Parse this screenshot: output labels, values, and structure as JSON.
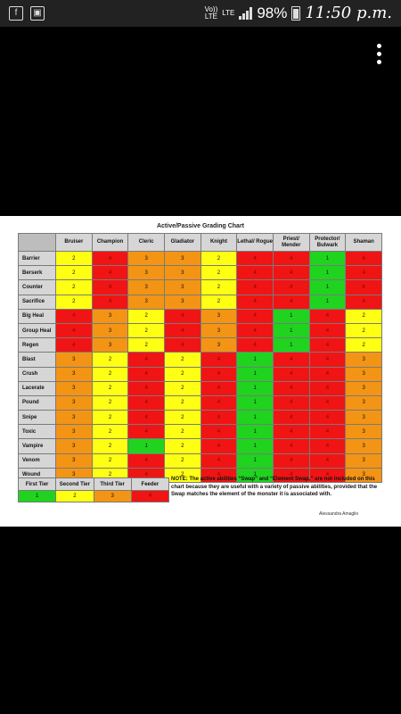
{
  "status_bar": {
    "volte": "Vo))\nLTE",
    "lte": "LTE",
    "battery": "98%",
    "time": "11:50 p.m.",
    "icons": [
      "facebook-icon",
      "gallery-icon",
      "signal-icon",
      "battery-icon",
      "overflow-menu-icon"
    ]
  },
  "chart": {
    "title": "Active/Passive Grading Chart",
    "columns": [
      "Bruiser",
      "Champion",
      "Cleric",
      "Gladiator",
      "Knight",
      "Lethal/ Rogue",
      "Priest/ Mender",
      "Protector/ Bulwark",
      "Shaman"
    ],
    "rows": [
      {
        "name": "Barrier",
        "values": [
          2,
          4,
          3,
          3,
          2,
          4,
          4,
          1,
          4
        ]
      },
      {
        "name": "Berserk",
        "values": [
          2,
          4,
          3,
          3,
          2,
          4,
          4,
          1,
          4
        ]
      },
      {
        "name": "Counter",
        "values": [
          2,
          4,
          3,
          3,
          2,
          4,
          4,
          1,
          4
        ]
      },
      {
        "name": "Sacrifice",
        "values": [
          2,
          4,
          3,
          3,
          2,
          4,
          4,
          1,
          4
        ]
      },
      {
        "name": "Big Heal",
        "values": [
          4,
          3,
          2,
          4,
          3,
          4,
          1,
          4,
          2
        ]
      },
      {
        "name": "Group Heal",
        "values": [
          4,
          3,
          2,
          4,
          3,
          4,
          1,
          4,
          2
        ]
      },
      {
        "name": "Regen",
        "values": [
          4,
          3,
          2,
          4,
          3,
          4,
          1,
          4,
          2
        ]
      },
      {
        "name": "Blast",
        "values": [
          3,
          2,
          4,
          2,
          4,
          1,
          4,
          4,
          3
        ]
      },
      {
        "name": "Crush",
        "values": [
          3,
          2,
          4,
          2,
          4,
          1,
          4,
          4,
          3
        ]
      },
      {
        "name": "Lacerate",
        "values": [
          3,
          2,
          4,
          2,
          4,
          1,
          4,
          4,
          3
        ]
      },
      {
        "name": "Pound",
        "values": [
          3,
          2,
          4,
          2,
          4,
          1,
          4,
          4,
          3
        ]
      },
      {
        "name": "Snipe",
        "values": [
          3,
          2,
          4,
          2,
          4,
          1,
          4,
          4,
          3
        ]
      },
      {
        "name": "Toxic",
        "values": [
          3,
          2,
          4,
          2,
          4,
          1,
          4,
          4,
          3
        ]
      },
      {
        "name": "Vampire",
        "values": [
          3,
          2,
          1,
          2,
          4,
          1,
          4,
          4,
          3
        ]
      },
      {
        "name": "Venom",
        "values": [
          3,
          2,
          4,
          2,
          4,
          1,
          4,
          4,
          3
        ]
      },
      {
        "name": "Wound",
        "values": [
          3,
          2,
          4,
          2,
          4,
          1,
          4,
          4,
          3
        ]
      }
    ],
    "colors": {
      "1": "#1fd31f",
      "2": "#ffff14",
      "3": "#f39414",
      "4": "#f01414"
    }
  },
  "legend": {
    "tiers": [
      {
        "label": "First Tier",
        "value": "1"
      },
      {
        "label": "Second Tier",
        "value": "2"
      },
      {
        "label": "Third Tier",
        "value": "3"
      },
      {
        "label": "Feeder",
        "value": "4"
      }
    ]
  },
  "note": "NOTE: The active abilities “Swap” and “Element Swap,” are not included on this chart because they are useful with a variety of passive abilities, provided that the Swap matches the element of the monster it is associated with.",
  "author": "Alessandra Amaglio"
}
